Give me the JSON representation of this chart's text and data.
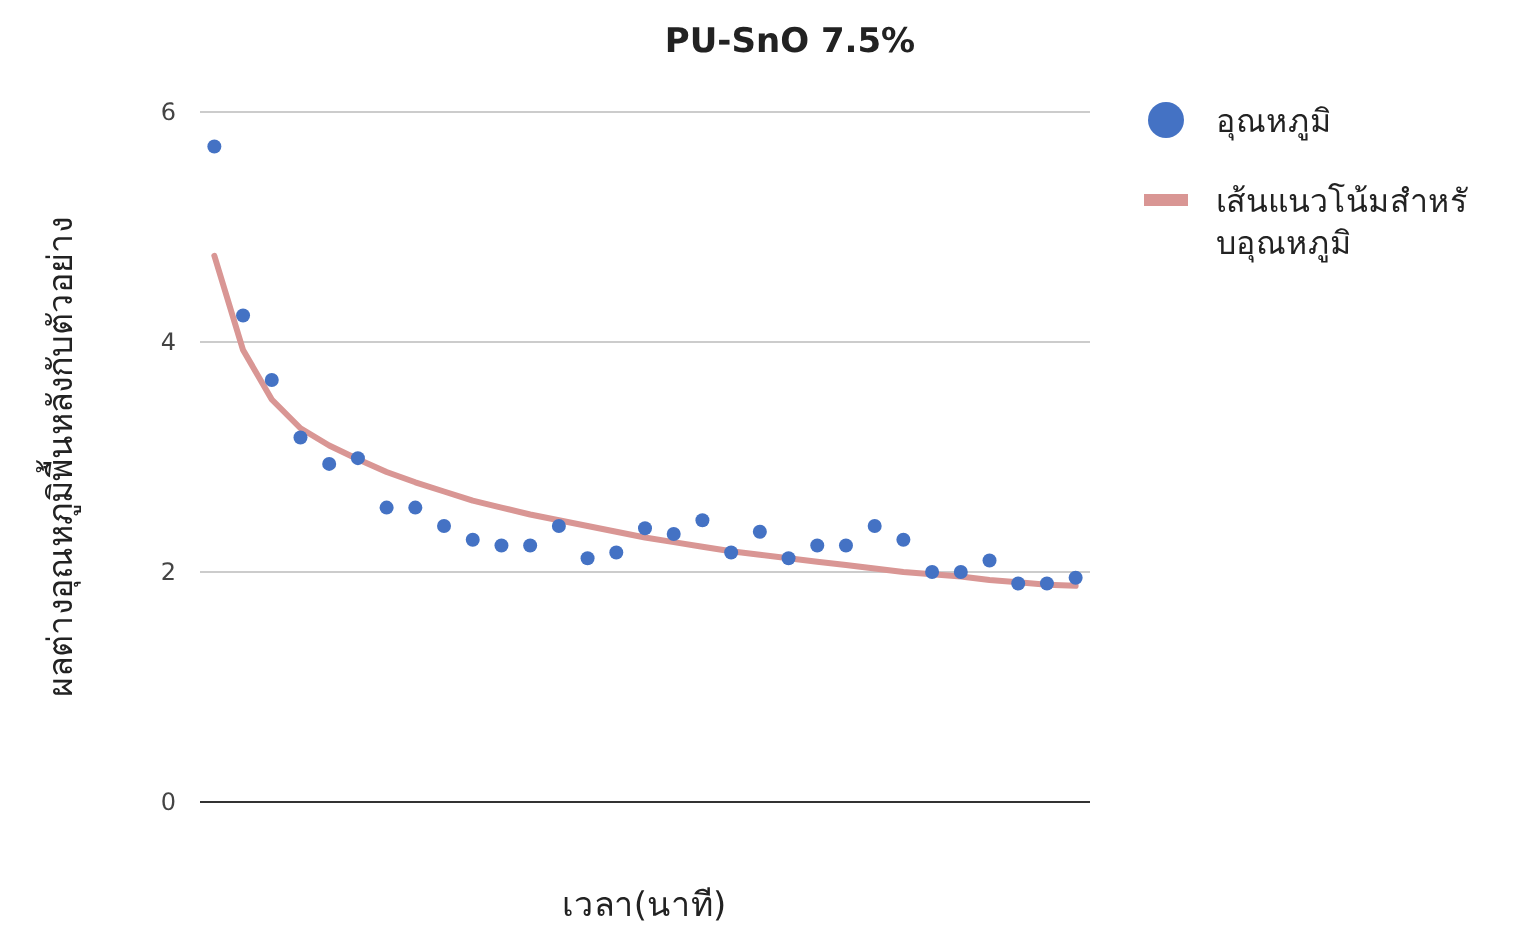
{
  "chart_data": {
    "type": "scatter",
    "title": "PU-SnO 7.5%",
    "xlabel": "เวลา(นาที)",
    "ylabel": "ผลต่างอุณหภูมิพื้นหลังกับตัวอย่าง",
    "categories": [
      null,
      null,
      null,
      null,
      null,
      null,
      null,
      null,
      null,
      null,
      null,
      null,
      null,
      null,
      null,
      null,
      null,
      null,
      null,
      null,
      null,
      null,
      null,
      null,
      null,
      null,
      null,
      null,
      null,
      null,
      null
    ],
    "ylim": [
      0,
      6
    ],
    "yticks": [
      0,
      2,
      4,
      6
    ],
    "grid": "y",
    "legend": "right",
    "tick_labels": "y",
    "series": [
      {
        "name": "อุณหภูมิ",
        "type": "scatter",
        "marker": "circle",
        "color": "#4472c4",
        "values": [
          5.7,
          4.23,
          3.67,
          3.17,
          2.94,
          2.99,
          2.56,
          2.56,
          2.4,
          2.28,
          2.23,
          2.23,
          2.4,
          2.12,
          2.17,
          2.38,
          2.33,
          2.45,
          2.17,
          2.35,
          2.12,
          2.23,
          2.23,
          2.4,
          2.28,
          2.0,
          2.0,
          2.1,
          1.9,
          1.9,
          1.95
        ]
      },
      {
        "name": "เส้นแนวโน้มสำหรับอุณหภูมิ",
        "type": "line",
        "marker": "none",
        "color": "#d99694",
        "values": [
          4.75,
          3.93,
          3.5,
          3.25,
          3.1,
          2.98,
          2.87,
          2.78,
          2.7,
          2.62,
          2.56,
          2.5,
          2.45,
          2.4,
          2.35,
          2.3,
          2.26,
          2.22,
          2.18,
          2.15,
          2.12,
          2.09,
          2.06,
          2.03,
          2.0,
          1.98,
          1.96,
          1.93,
          1.91,
          1.89,
          1.88
        ]
      }
    ]
  }
}
